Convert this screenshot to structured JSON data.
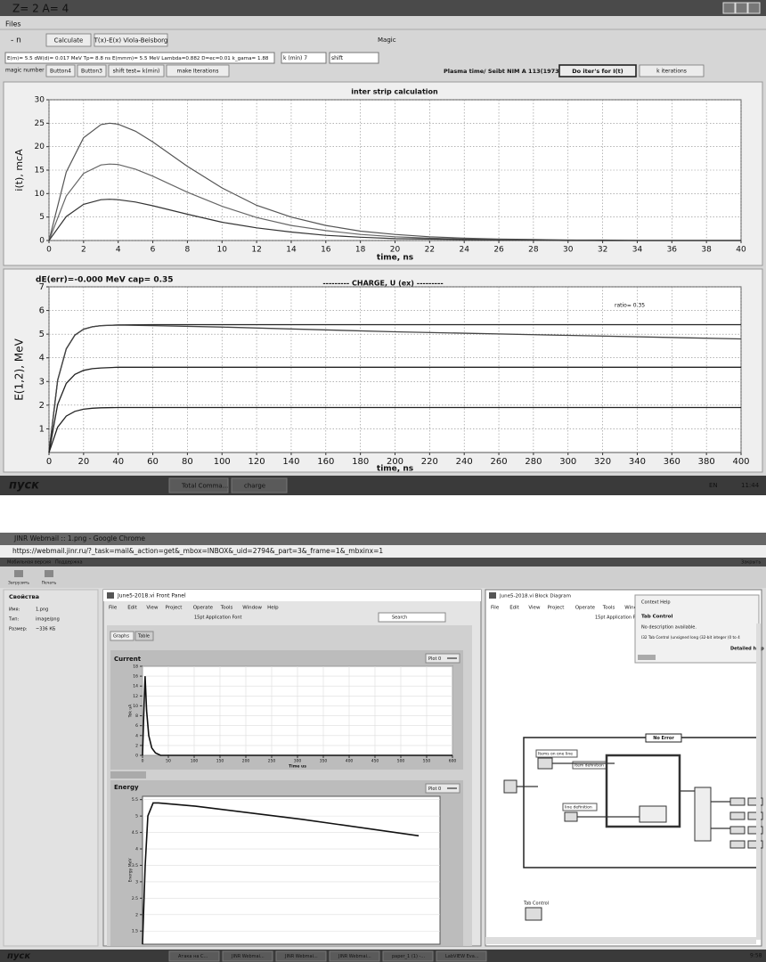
{
  "top_window": {
    "title": "Z= 2   A= 4",
    "menu": "Files",
    "toolbar": {
      "n_label": "- n",
      "buttons": [
        "Calculate",
        "T(x)-E(x) Viola-Beisborg"
      ],
      "magic": "Magic"
    },
    "params": {
      "field": "E(m)= 5.5  dW(d)= 0.017 MeV  Tp= 8.8 ns   E(mmm)= 5.5 MeV  Lambda=0.882  D=ec=0.01  k_gama= 1.88",
      "k_min": "k (min) 7",
      "shift": "shift"
    },
    "row2": {
      "label": "magic number",
      "buttons": [
        "Button4",
        "Button3",
        "shift test= k(min)",
        "make Iterations"
      ],
      "reference": "Plasma time/ Seibt NIM A 113(1973)317",
      "iter_button": "Do iter's for I(t)",
      "k_iterations": "k iterations"
    },
    "charts": [
      {
        "type": "line",
        "title": "inter strip calculation",
        "x_label": "time, ns",
        "y_label": "i(t), mcA",
        "x": [
          0,
          1,
          2,
          3,
          3.5,
          4,
          5,
          6,
          8,
          10,
          12,
          14,
          16,
          18,
          20,
          22,
          24,
          26,
          28,
          30,
          32,
          34,
          36,
          38,
          40
        ],
        "series": [
          {
            "color": "#555555",
            "values": [
              0,
              14.6,
              21.9,
              24.7,
              25,
              24.8,
              23.3,
              21.0,
              15.8,
              11.2,
              7.5,
              5.0,
              3.2,
              2.0,
              1.3,
              0.8,
              0.5,
              0.3,
              0.2,
              0.1,
              0.1,
              0,
              0,
              0,
              0
            ]
          },
          {
            "color": "#666666",
            "values": [
              0,
              9.5,
              14.3,
              16.1,
              16.3,
              16.2,
              15.2,
              13.7,
              10.3,
              7.3,
              4.9,
              3.2,
              2.1,
              1.3,
              0.8,
              0.5,
              0.3,
              0.2,
              0.1,
              0.1,
              0,
              0,
              0,
              0,
              0
            ]
          },
          {
            "color": "#333333",
            "values": [
              0,
              5.1,
              7.7,
              8.7,
              8.8,
              8.7,
              8.2,
              7.4,
              5.6,
              3.9,
              2.7,
              1.8,
              1.1,
              0.7,
              0.4,
              0.3,
              0.2,
              0.1,
              0.1,
              0,
              0,
              0,
              0,
              0,
              0
            ]
          }
        ],
        "xlim": [
          0,
          40
        ],
        "ylim": [
          0,
          30
        ],
        "xticks": [
          0,
          2,
          4,
          6,
          8,
          10,
          12,
          14,
          16,
          18,
          20,
          22,
          24,
          26,
          28,
          30,
          32,
          34,
          36,
          38,
          40
        ],
        "yticks": [
          0,
          5,
          10,
          15,
          20,
          25,
          30
        ],
        "grid": true
      },
      {
        "type": "line",
        "title": "---------  CHARGE, U (ex)  ---------",
        "info": "dE(err)=-0.000 MeV cap= 0.35",
        "annotation": "ratio= 0.35",
        "x_label": "time, ns",
        "y_label": "E(1,2),  MeV",
        "x": [
          0,
          5,
          10,
          15,
          20,
          25,
          30,
          40,
          60,
          100,
          200,
          300,
          400
        ],
        "series": [
          {
            "color": "#222222",
            "values": [
              0,
              3.05,
              4.38,
              4.96,
              5.21,
              5.31,
              5.36,
              5.39,
              5.4,
              5.4,
              5.4,
              5.4,
              5.4
            ]
          },
          {
            "color": "#444444",
            "values": [
              0,
              3.05,
              4.38,
              4.96,
              5.21,
              5.31,
              5.36,
              5.38,
              5.36,
              5.3,
              5.1,
              4.95,
              4.8
            ]
          },
          {
            "color": "#222222",
            "values": [
              0,
              2.03,
              2.92,
              3.3,
              3.47,
              3.54,
              3.57,
              3.6,
              3.6,
              3.6,
              3.6,
              3.6,
              3.6
            ]
          },
          {
            "color": "#222222",
            "values": [
              0,
              1.07,
              1.54,
              1.74,
              1.83,
              1.87,
              1.89,
              1.9,
              1.9,
              1.9,
              1.9,
              1.9,
              1.9
            ]
          }
        ],
        "xlim": [
          0,
          400
        ],
        "ylim": [
          0,
          7
        ],
        "xticks": [
          0,
          20,
          40,
          60,
          80,
          100,
          120,
          140,
          160,
          180,
          200,
          220,
          240,
          260,
          280,
          300,
          320,
          340,
          360,
          380,
          400
        ],
        "yticks": [
          1,
          2,
          3,
          4,
          5,
          6,
          7
        ],
        "grid": true
      }
    ],
    "taskbar": {
      "start": "пуск",
      "items": [
        "Total Comma...",
        "charge"
      ],
      "lang": "EN",
      "time": "11:44"
    }
  },
  "bottom_window": {
    "browser_title": "JINR Webmail :: 1.png - Google Chrome",
    "url": "https://webmail.jinr.ru/?_task=mail&_action=get&_mbox=INBOX&_uid=2794&_part=3&_frame=1&_mbxinx=1",
    "nav": [
      "Мобильная версия",
      "Поддержка"
    ],
    "close": "Закрыть",
    "tools": [
      "Загрузить",
      "Печать"
    ],
    "properties": {
      "title": "Свойства",
      "rows": [
        [
          "Имя:",
          "1.png"
        ],
        [
          "Тип:",
          "image/png"
        ],
        [
          "Размер:",
          "~336 КБ"
        ]
      ]
    },
    "front_panel": {
      "title": "June5-2018.vi Front Panel",
      "menu": [
        "File",
        "Edit",
        "View",
        "Project",
        "Operate",
        "Tools",
        "Window",
        "Help"
      ],
      "font": "15pt Application Font",
      "search": "Search",
      "tabs": [
        "Graphs",
        "Table"
      ],
      "charts": [
        {
          "type": "line",
          "title": "Current",
          "x_label": "Time us",
          "y_label": "Tok uA",
          "x": [
            0,
            3,
            5,
            8,
            12,
            18,
            25,
            35,
            600
          ],
          "series": [
            {
              "name": "Plot 0",
              "color": "#111111",
              "values": [
                0,
                10,
                16,
                9,
                4,
                1.5,
                0.5,
                0,
                0
              ]
            }
          ],
          "xlim": [
            0,
            600
          ],
          "ylim": [
            0,
            18
          ],
          "xticks": [
            0,
            50,
            100,
            150,
            200,
            250,
            300,
            350,
            400,
            450,
            500,
            550,
            600
          ],
          "yticks": [
            0,
            2,
            4,
            6,
            8,
            10,
            12,
            14,
            16,
            18
          ],
          "grid": true
        },
        {
          "type": "line",
          "title": "Energy",
          "y_label": "Energy MeV",
          "x": [
            0,
            5,
            10,
            20,
            30,
            100,
            300,
            520
          ],
          "series": [
            {
              "name": "Plot 0",
              "color": "#111111",
              "values": [
                1.1,
                3.5,
                5.0,
                5.4,
                5.4,
                5.3,
                4.9,
                4.4
              ]
            }
          ],
          "xlim": [
            0,
            560
          ],
          "ylim": [
            1.1,
            5.6
          ],
          "yticks": [
            1.5,
            2,
            2.5,
            3,
            3.5,
            4,
            4.5,
            5,
            5.5
          ],
          "grid": true
        }
      ]
    },
    "block_diagram": {
      "title": "June5-2018.vi Block Diagram",
      "menu": [
        "File",
        "Edit",
        "View",
        "Project",
        "Operate",
        "Tools",
        "Window",
        "Help"
      ],
      "font": "15pt Application Font",
      "context_help": {
        "title": "Context Help",
        "heading": "Tab Control",
        "desc": "No description available.",
        "signature": "I32 Tab Control (unsigned long (32-bit integer (0 to 4",
        "link": "Detailed help"
      },
      "labels": [
        "No Error",
        "Items on one line",
        "Item definition",
        "line definition",
        "Tab Control"
      ]
    },
    "taskbar": {
      "start": "пуск",
      "items": [
        "Атака на С...",
        "JINR Webmai...",
        "JINR Webmai...",
        "JINR Webmai...",
        "paper_1 (1) -...",
        "LabVIEW Eva..."
      ],
      "time": "9:58"
    }
  }
}
